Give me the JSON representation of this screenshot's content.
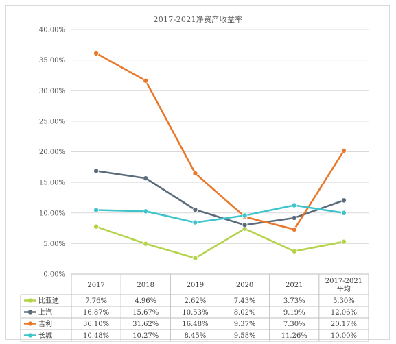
{
  "chart_data": {
    "type": "line",
    "title": "2017-2021净资产收益率",
    "categories": [
      "2017",
      "2018",
      "2019",
      "2020",
      "2021",
      "2017-2021平均"
    ],
    "category_lines": [
      [
        "2017"
      ],
      [
        "2018"
      ],
      [
        "2019"
      ],
      [
        "2020"
      ],
      [
        "2021"
      ],
      [
        "2017-2021",
        "平均"
      ]
    ],
    "ylim": [
      0,
      40
    ],
    "yticks": [
      "0.00%",
      "5.00%",
      "10.00%",
      "15.00%",
      "20.00%",
      "25.00%",
      "30.00%",
      "35.00%",
      "40.00%"
    ],
    "grid": true,
    "legend_placement": "data-table",
    "series": [
      {
        "name": "比亚迪",
        "color": "#b4d34a",
        "values": [
          7.76,
          4.96,
          2.62,
          7.43,
          3.73,
          5.3
        ],
        "labels": [
          "7.76%",
          "4.96%",
          "2.62%",
          "7.43%",
          "3.73%",
          "5.30%"
        ]
      },
      {
        "name": "上汽",
        "color": "#5a6b7b",
        "values": [
          16.87,
          15.67,
          10.53,
          8.02,
          9.19,
          12.06
        ],
        "labels": [
          "16.87%",
          "15.67%",
          "10.53%",
          "8.02%",
          "9.19%",
          "12.06%"
        ]
      },
      {
        "name": "吉利",
        "color": "#e8782c",
        "values": [
          36.1,
          31.62,
          16.48,
          9.37,
          7.3,
          20.17
        ],
        "labels": [
          "36.10%",
          "31.62%",
          "16.48%",
          "9.37%",
          "7.30%",
          "20.17%"
        ]
      },
      {
        "name": "长城",
        "color": "#3fc4cc",
        "values": [
          10.48,
          10.27,
          8.45,
          9.58,
          11.26,
          10.0
        ],
        "labels": [
          "10.48%",
          "10.27%",
          "8.45%",
          "9.58%",
          "11.26%",
          "10.00%"
        ]
      }
    ]
  }
}
